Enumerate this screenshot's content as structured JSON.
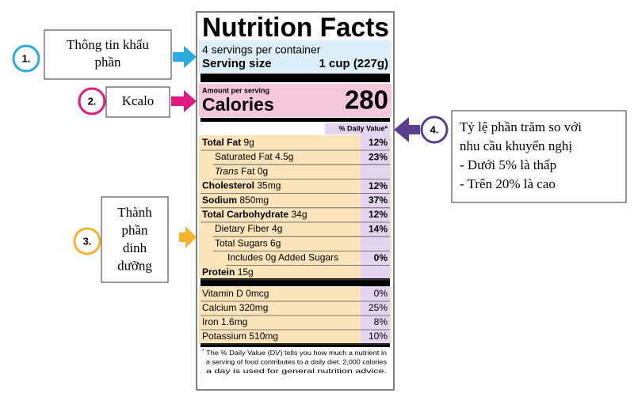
{
  "label": {
    "title": "Nutrition Facts",
    "servings": "4 servings per container",
    "serving_size_label": "Serving size",
    "serving_size_value": "1 cup (227g)",
    "amount_per_serving": "Amount per serving",
    "calories_label": "Calories",
    "calories_value": "280",
    "dv_header": "% Daily Value*",
    "nutrients": [
      {
        "name": "Total Fat",
        "amount": "9g",
        "dv": "12%"
      },
      {
        "name": "Saturated Fat",
        "amount": "4.5g",
        "dv": "23%"
      },
      {
        "prefix": "Trans",
        "name": "Fat",
        "amount": "0g"
      },
      {
        "name": "Cholesterol",
        "amount": "35mg",
        "dv": "12%"
      },
      {
        "name": "Sodium",
        "amount": "850mg",
        "dv": "37%"
      },
      {
        "name": "Total Carbohydrate",
        "amount": "34g",
        "dv": "12%"
      },
      {
        "name": "Dietary Fiber",
        "amount": "4g",
        "dv": "14%"
      },
      {
        "name": "Total Sugars",
        "amount": "6g"
      },
      {
        "name": "Includes 0g Added Sugars",
        "dv": "0%"
      },
      {
        "name": "Protein",
        "amount": "15g"
      }
    ],
    "vitamins": [
      {
        "name": "Vitamin D",
        "amount": "0mcg",
        "dv": "0%"
      },
      {
        "name": "Calcium",
        "amount": "320mg",
        "dv": "25%"
      },
      {
        "name": "Iron",
        "amount": "1.6mg",
        "dv": "8%"
      },
      {
        "name": "Potassium",
        "amount": "510mg",
        "dv": "10%"
      }
    ],
    "footnote_mark": "*",
    "footnote": [
      "The % Daily Value (DV) tells you how much a nutrient in",
      "a serving of food contributes to a daily diet. 2,000 calories",
      "a day is used for general nutrition advice."
    ]
  },
  "annotations": [
    {
      "number": "1.",
      "lines": [
        "Thông tin khẩu",
        "phần"
      ]
    },
    {
      "number": "2.",
      "lines": [
        "Kcalo"
      ]
    },
    {
      "number": "3.",
      "lines": [
        "Thành",
        "phần",
        "dinh",
        "dưỡng"
      ]
    },
    {
      "number": "4.",
      "lines": [
        "Tỷ lệ phần trăm so với",
        "nhu cầu khuyến nghị",
        "- Dưới 5% là thấp",
        "- Trên 20% là cao"
      ]
    }
  ]
}
